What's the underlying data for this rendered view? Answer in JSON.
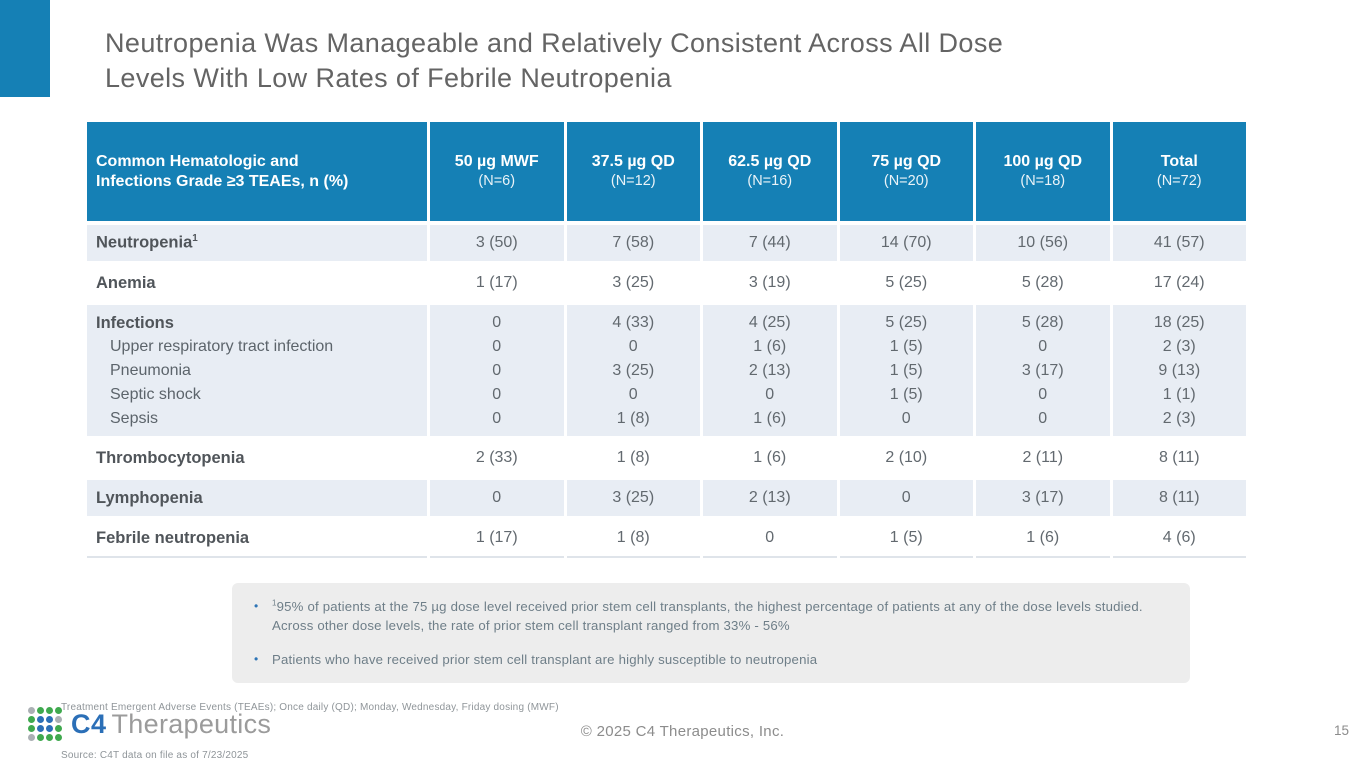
{
  "slide": {
    "page_number": "15"
  },
  "colors": {
    "header_blue": "#1580B5",
    "row_shade": "#E8EDF4",
    "footnote_bg": "#EDEDED",
    "bullet_blue": "#2E75B6",
    "logo_blue": "#2B6FB7",
    "logo_green": "#3FA94E",
    "logo_gray": "#ABB0B4"
  },
  "title": {
    "line1": "Neutropenia Was Manageable and Relatively Consistent Across All Dose",
    "line2": "Levels With Low Rates of Febrile Neutropenia"
  },
  "table": {
    "header": {
      "label_line1": "Common Hematologic and",
      "label_line2": "Infections Grade ≥3 TEAEs, n (%)",
      "columns": [
        {
          "label": "50 µg MWF",
          "n": "(N=6)"
        },
        {
          "label": "37.5 µg QD",
          "n": "(N=12)"
        },
        {
          "label": "62.5 µg QD",
          "n": "(N=16)"
        },
        {
          "label": "75 µg QD",
          "n": "(N=20)"
        },
        {
          "label": "100 µg QD",
          "n": "(N=18)"
        },
        {
          "label": "Total",
          "n": "(N=72)"
        }
      ]
    },
    "rows": [
      {
        "label": "Neutropenia",
        "sup": "1",
        "values": [
          "3 (50)",
          "7 (58)",
          "7 (44)",
          "14 (70)",
          "10 (56)",
          "41 (57)"
        ]
      },
      {
        "label": "Anemia",
        "values": [
          "1 (17)",
          "3 (25)",
          "3 (19)",
          "5 (25)",
          "5 (28)",
          "17 (24)"
        ]
      },
      {
        "lines": [
          {
            "label": "Infections",
            "values": [
              "0",
              "4 (33)",
              "4 (25)",
              "5 (25)",
              "5 (28)",
              "18 (25)"
            ]
          },
          {
            "label": "Upper respiratory tract infection",
            "values": [
              "0",
              "0",
              "1 (6)",
              "1 (5)",
              "0",
              "2 (3)"
            ]
          },
          {
            "label": "Pneumonia",
            "values": [
              "0",
              "3 (25)",
              "2 (13)",
              "1 (5)",
              "3 (17)",
              "9 (13)"
            ]
          },
          {
            "label": "Septic shock",
            "values": [
              "0",
              "0",
              "0",
              "1 (5)",
              "0",
              "1 (1)"
            ]
          },
          {
            "label": "Sepsis",
            "values": [
              "0",
              "1 (8)",
              "1 (6)",
              "0",
              "0",
              "2 (3)"
            ]
          }
        ]
      },
      {
        "label": "Thrombocytopenia",
        "values": [
          "2 (33)",
          "1 (8)",
          "1 (6)",
          "2 (10)",
          "2  (11)",
          "8 (11)"
        ]
      },
      {
        "label": "Lymphopenia",
        "values": [
          "0",
          "3 (25)",
          "2 (13)",
          "0",
          "3 (17)",
          "8 (11)"
        ]
      },
      {
        "label": "Febrile neutropenia",
        "values": [
          "1 (17)",
          "1 (8)",
          "0",
          "1 (5)",
          "1 (6)",
          "4 (6)"
        ]
      }
    ]
  },
  "footnotes": {
    "bullet_glyph": "•",
    "bullets": [
      {
        "sup": "1",
        "text": "95% of patients at the 75 µg dose level received prior stem cell transplants, the highest percentage of patients at any of the dose levels studied. Across other dose levels, the rate of prior stem cell transplant ranged from 33% - 56%"
      },
      {
        "sup": "",
        "text": "Patients who have received prior stem cell transplant are highly susceptible to neutropenia"
      }
    ]
  },
  "footer": {
    "abbreviations": "Treatment Emergent Adverse Events (TEAEs); Once daily (QD); Monday, Wednesday, Friday dosing (MWF)",
    "source": "Source: C4T data on file as of 7/23/2025",
    "copyright": "© 2025 C4 Therapeutics, Inc.",
    "logo": {
      "c4": "C4",
      "therapeutics": "Therapeutics",
      "dot_colors": {
        "gray": "#ABB0B4",
        "green": "#3FA94E",
        "blue": "#2B6FB7"
      },
      "dots": [
        [
          "gray",
          "green",
          "green",
          "green"
        ],
        [
          "green",
          "blue",
          "blue",
          "gray"
        ],
        [
          "green",
          "blue",
          "blue",
          "green"
        ],
        [
          "gray",
          "green",
          "green",
          "green"
        ]
      ]
    }
  }
}
